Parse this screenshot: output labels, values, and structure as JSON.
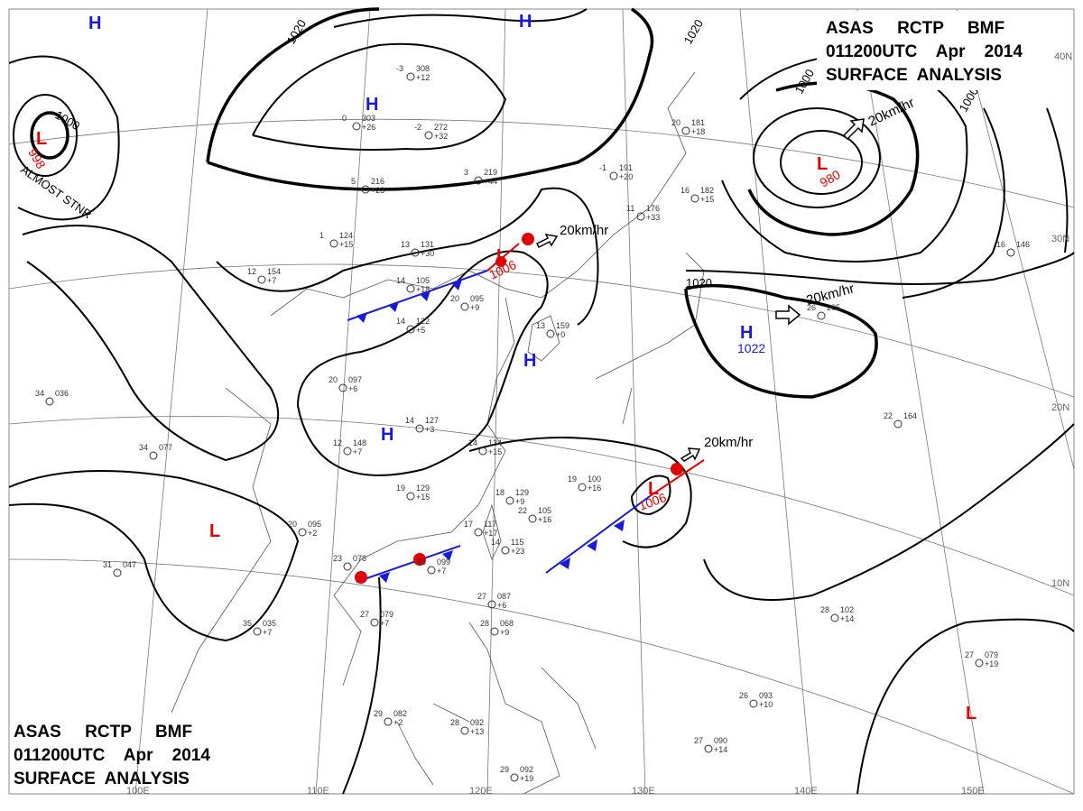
{
  "titles": {
    "top": {
      "line1": "ASAS     RCTP     BMF",
      "line2": "011200UTC    Apr    2014",
      "line3": "SURFACE  ANALYSIS"
    },
    "bottom": {
      "line1": "ASAS     RCTP     BMF",
      "line2": "011200UTC    Apr    2014",
      "line3": "SURFACE  ANALYSIS"
    }
  },
  "centers": {
    "high_symbol": "H",
    "low_symbol": "L",
    "low_nw_pressure": "998",
    "low_ne_pressure": "980",
    "low_korea_pressure": "1006",
    "low_east_pressure": "1006",
    "high_east_pressure": "1022",
    "almost_stnr": "ALMOST STNR"
  },
  "isobar_labels": {
    "a": "1020",
    "b": "1020",
    "c": "1000",
    "d": "1000",
    "e": "1000",
    "f": "1020",
    "g": "1020"
  },
  "wind_vectors": {
    "ne_low": "20km/hr",
    "korea_low": "20km/hr",
    "east_high": "20km/hr",
    "east_low": "20km/hr"
  },
  "grid_labels": {
    "lon100": "100E",
    "lon110": "110E",
    "lon120": "120E",
    "lon130": "130E",
    "lon140": "140E",
    "lon150": "150E",
    "lat10": "10N",
    "lat20": "20N",
    "lat30": "30N",
    "lat40": "40N"
  },
  "stations": [
    {
      "t": "-3",
      "p": "308",
      "d": "+12"
    },
    {
      "t": "0",
      "p": "303",
      "d": "+26"
    },
    {
      "t": "-2",
      "p": "272",
      "d": "+32"
    },
    {
      "t": "5",
      "p": "216",
      "d": "+23"
    },
    {
      "t": "3",
      "p": "219",
      "d": "+44"
    },
    {
      "t": "-1",
      "p": "191",
      "d": "+20"
    },
    {
      "t": "1",
      "p": "124",
      "d": "+15"
    },
    {
      "t": "13",
      "p": "131",
      "d": "+30"
    },
    {
      "t": "12",
      "p": "154",
      "d": "+7"
    },
    {
      "t": "14",
      "p": "105",
      "d": "+18"
    },
    {
      "t": "20",
      "p": "095",
      "d": "+9"
    },
    {
      "t": "14",
      "p": "122",
      "d": "+5"
    },
    {
      "t": "13",
      "p": "159",
      "d": "+0"
    },
    {
      "t": "11",
      "p": "176",
      "d": "+33"
    },
    {
      "t": "20",
      "p": "097",
      "d": "+6"
    },
    {
      "t": "14",
      "p": "127",
      "d": "+3"
    },
    {
      "t": "12",
      "p": "148",
      "d": "+7"
    },
    {
      "t": "14",
      "p": "134",
      "d": "+15"
    },
    {
      "t": "19",
      "p": "129",
      "d": "+15"
    },
    {
      "t": "18",
      "p": "129",
      "d": "+9"
    },
    {
      "t": "19",
      "p": "100",
      "d": "+16"
    },
    {
      "t": "22",
      "p": "105",
      "d": "+16"
    },
    {
      "t": "17",
      "p": "117",
      "d": "+17"
    },
    {
      "t": "14",
      "p": "115",
      "d": "+23"
    },
    {
      "t": "20",
      "p": "095",
      "d": "+2"
    },
    {
      "t": "23",
      "p": "099",
      "d": "+7"
    },
    {
      "t": "23",
      "p": "078",
      "d": ""
    },
    {
      "t": "27",
      "p": "079",
      "d": "+7"
    },
    {
      "t": "35",
      "p": "035",
      "d": "+7"
    },
    {
      "t": "34",
      "p": "077",
      "d": ""
    },
    {
      "t": "31",
      "p": "047",
      "d": ""
    },
    {
      "t": "34",
      "p": "036",
      "d": ""
    },
    {
      "t": "27",
      "p": "087",
      "d": "+6"
    },
    {
      "t": "28",
      "p": "068",
      "d": "+9"
    },
    {
      "t": "29",
      "p": "082",
      "d": "+2"
    },
    {
      "t": "28",
      "p": "092",
      "d": "+13"
    },
    {
      "t": "29",
      "p": "092",
      "d": "+19"
    },
    {
      "t": "28",
      "p": "102",
      "d": "+14"
    },
    {
      "t": "26",
      "p": "093",
      "d": "+10"
    },
    {
      "t": "27",
      "p": "090",
      "d": "+14"
    },
    {
      "t": "27",
      "p": "079",
      "d": "+19"
    },
    {
      "t": "22",
      "p": "164",
      "d": ""
    },
    {
      "t": "16",
      "p": "146",
      "d": ""
    },
    {
      "t": "26",
      "p": "205",
      "d": ""
    },
    {
      "t": "16",
      "p": "182",
      "d": "+15"
    },
    {
      "t": "20",
      "p": "181",
      "d": "+18"
    }
  ]
}
